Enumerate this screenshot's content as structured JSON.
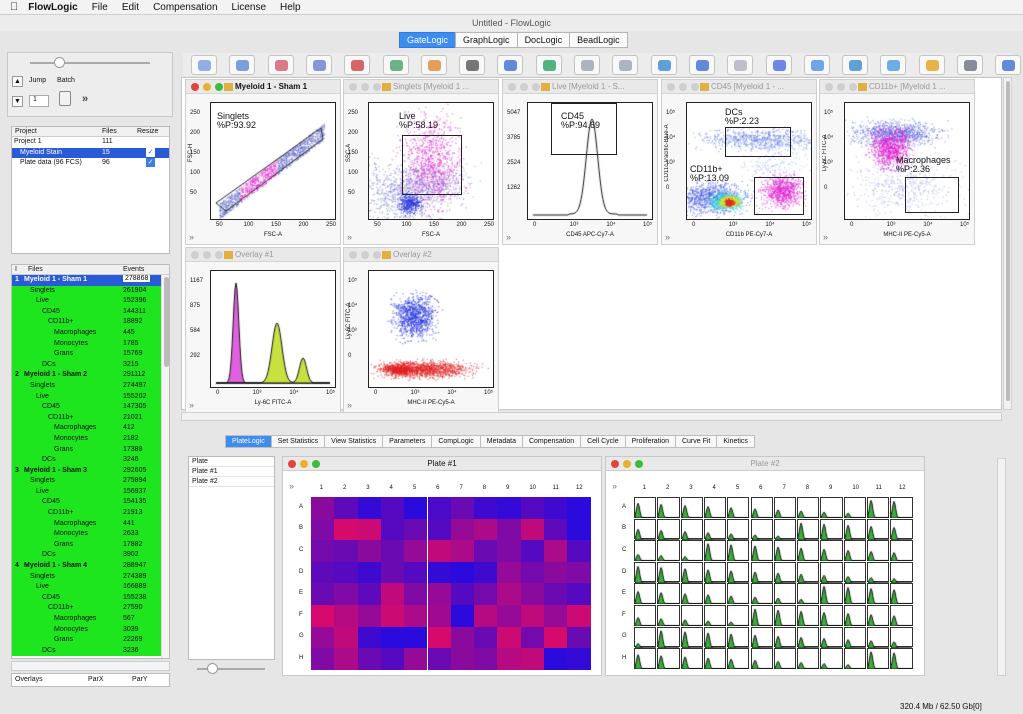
{
  "menubar": {
    "apple": "",
    "app": "FlowLogic",
    "items": [
      "File",
      "Edit",
      "Compensation",
      "License",
      "Help"
    ]
  },
  "window_title": "Untitled - FlowLogic",
  "app_tabs": [
    "GateLogic",
    "GraphLogic",
    "DocLogic",
    "BeadLogic"
  ],
  "left_controls": {
    "jump": "Jump",
    "batch": "Batch",
    "jump_value": "1"
  },
  "project_table": {
    "headers": [
      "Project",
      "Files",
      "Resize"
    ],
    "rows": [
      {
        "name": "Project 1",
        "files": "111"
      },
      {
        "name": "Myeloid Stain",
        "files": "15",
        "checked": true
      },
      {
        "name": "Plate data (96 FCS)",
        "files": "96",
        "checked": true
      }
    ]
  },
  "files_table": {
    "headers": [
      "I",
      "Files",
      "Events"
    ],
    "rows": [
      [
        "1",
        "Myeloid 1 - Sham 1",
        "278868"
      ],
      [
        "",
        "Singlets",
        "261904"
      ],
      [
        "",
        "Live",
        "152396"
      ],
      [
        "",
        "CD45",
        "144311"
      ],
      [
        "",
        "CD11b+",
        "18892"
      ],
      [
        "",
        "Macrophages",
        "445"
      ],
      [
        "",
        "Monocytes",
        "1785"
      ],
      [
        "",
        "Grans",
        "15769"
      ],
      [
        "",
        "DCs",
        "3215"
      ],
      [
        "2",
        "Myeloid 1 - Sham 2",
        "291112"
      ],
      [
        "",
        "Singlets",
        "274497"
      ],
      [
        "",
        "Live",
        "155202"
      ],
      [
        "",
        "CD45",
        "147305"
      ],
      [
        "",
        "CD11b+",
        "21021"
      ],
      [
        "",
        "Macrophages",
        "412"
      ],
      [
        "",
        "Monocytes",
        "2182"
      ],
      [
        "",
        "Grans",
        "17388"
      ],
      [
        "",
        "DCs",
        "3246"
      ],
      [
        "3",
        "Myeloid 1 - Sham 3",
        "292605"
      ],
      [
        "",
        "Singlets",
        "275894"
      ],
      [
        "",
        "Live",
        "156937"
      ],
      [
        "",
        "CD45",
        "154135"
      ],
      [
        "",
        "CD11b+",
        "21913"
      ],
      [
        "",
        "Macrophages",
        "441"
      ],
      [
        "",
        "Monocytes",
        "2633"
      ],
      [
        "",
        "Grans",
        "17882"
      ],
      [
        "",
        "DCs",
        "3902"
      ],
      [
        "4",
        "Myeloid 1 - Sham 4",
        "288947"
      ],
      [
        "",
        "Singlets",
        "274389"
      ],
      [
        "",
        "Live",
        "166889"
      ],
      [
        "",
        "CD45",
        "155238"
      ],
      [
        "",
        "CD11b+",
        "27590"
      ],
      [
        "",
        "Macrophages",
        "567"
      ],
      [
        "",
        "Monocytes",
        "3039"
      ],
      [
        "",
        "Grans",
        "22269"
      ],
      [
        "",
        "DCs",
        "3236"
      ]
    ],
    "indent": [
      0,
      1,
      2,
      3,
      4,
      5,
      5,
      5,
      3,
      0,
      1,
      2,
      3,
      4,
      5,
      5,
      5,
      3,
      0,
      1,
      2,
      3,
      4,
      5,
      5,
      5,
      3,
      0,
      1,
      2,
      3,
      4,
      5,
      5,
      5,
      3
    ]
  },
  "overlays_table": {
    "headers": [
      "Overlays",
      "ParX",
      "ParY"
    ]
  },
  "plots": [
    {
      "title": "Myeloid 1 - Sham 1",
      "active": true,
      "gate": "Singlets",
      "pct": "%P:93.92",
      "x": "FSC-A",
      "y": "FSC-H",
      "xt": [
        "50",
        "100",
        "150",
        "200",
        "250"
      ],
      "yt": [
        "250",
        "200",
        "150",
        "100",
        "50"
      ]
    },
    {
      "title": "Singlets [Myeloid 1 ...",
      "gate": "Live",
      "pct": "%P:58.19",
      "x": "FSC-A",
      "y": "SSC-A",
      "xt": [
        "50",
        "100",
        "150",
        "200",
        "250"
      ],
      "yt": [
        "250",
        "200",
        "150",
        "100",
        "50"
      ]
    },
    {
      "title": "Live [Myeloid 1 - S...",
      "gate": "CD45",
      "pct": "%P:94.69",
      "x": "CD45 APC-Cy7-A",
      "y": "",
      "xt": [
        "0",
        "10³",
        "10⁴",
        "10⁵"
      ],
      "yt": [
        "5047",
        "3785",
        "2524",
        "1262"
      ]
    },
    {
      "title": "CD45 [Myeloid 1 - ...",
      "gate": "DCs",
      "pct": "%P:2.23",
      "gate2": "CD11b+",
      "pct2": "%P:13.09",
      "x": "CD11b PE-Cy7-A",
      "y": "CD11c Pacific-Blue-A",
      "xt": [
        "0",
        "10³",
        "10⁴",
        "10⁵"
      ],
      "yt": [
        "10⁵",
        "10⁴",
        "10³",
        "0"
      ]
    },
    {
      "title": "CD11b+ [Myeloid 1 ...",
      "gate": "Macrophages",
      "pct": "%P:2.36",
      "x": "MHC-II PE-Cy5-A",
      "y": "Ly-6C FITC-A",
      "xt": [
        "0",
        "10³",
        "10⁴",
        "10⁵"
      ],
      "yt": [
        "10⁵",
        "10⁴",
        "10³",
        "0"
      ]
    },
    {
      "title": "Overlay #1",
      "x": "Ly-6C FITC-A",
      "y": "",
      "xt": [
        "0",
        "10³",
        "10⁴",
        "10⁵"
      ],
      "yt": [
        "1167",
        "875",
        "584",
        "292"
      ]
    },
    {
      "title": "Overlay #2",
      "x": "MHC-II PE-Cy5-A",
      "y": "Ly-6C FITC-A",
      "xt": [
        "0",
        "10³",
        "10⁴",
        "10⁵"
      ],
      "yt": [
        "10⁵",
        "10⁴",
        "10³",
        "0"
      ]
    }
  ],
  "bottom_tabs": [
    "PlateLogic",
    "Set Statistics",
    "View Statistics",
    "Parameters",
    "CompLogic",
    "Metadata",
    "Compensation",
    "Cell Cycle",
    "Proliferation",
    "Curve Fit",
    "Kinetics"
  ],
  "plate_list": [
    "Plate",
    "Plate #1",
    "Plate #2"
  ],
  "plate1": {
    "title": "Plate #1",
    "cols": [
      "1",
      "2",
      "3",
      "4",
      "5",
      "6",
      "7",
      "8",
      "9",
      "10",
      "11",
      "12"
    ],
    "rows": [
      "A",
      "B",
      "C",
      "D",
      "E",
      "F",
      "G",
      "H"
    ],
    "values": [
      [
        0.55,
        0.35,
        0.15,
        0.3,
        0.1,
        0.25,
        0.4,
        0.2,
        0.15,
        0.3,
        0.2,
        0.1
      ],
      [
        0.5,
        0.9,
        0.85,
        0.3,
        0.4,
        0.3,
        0.6,
        0.7,
        0.5,
        0.8,
        0.35,
        0.1
      ],
      [
        0.45,
        0.4,
        0.55,
        0.4,
        0.6,
        0.8,
        0.7,
        0.4,
        0.5,
        0.3,
        0.7,
        0.3
      ],
      [
        0.35,
        0.3,
        0.2,
        0.4,
        0.3,
        0.15,
        0.1,
        0.2,
        0.6,
        0.45,
        0.55,
        0.5
      ],
      [
        0.4,
        0.5,
        0.35,
        0.8,
        0.5,
        0.6,
        0.3,
        0.45,
        0.7,
        0.55,
        0.4,
        0.3
      ],
      [
        0.9,
        0.75,
        0.6,
        0.85,
        0.7,
        0.65,
        0.1,
        0.75,
        0.6,
        0.8,
        0.6,
        0.85
      ],
      [
        0.6,
        0.8,
        0.2,
        0.1,
        0.1,
        0.9,
        0.55,
        0.4,
        0.85,
        0.45,
        0.9,
        0.4
      ],
      [
        0.5,
        0.7,
        0.4,
        0.3,
        0.6,
        0.4,
        0.55,
        0.5,
        0.75,
        0.8,
        0.1,
        0.15
      ]
    ]
  },
  "plate2": {
    "title": "Plate #2",
    "cols": [
      "1",
      "2",
      "3",
      "4",
      "5",
      "6",
      "7",
      "8",
      "9",
      "10",
      "11",
      "12"
    ],
    "rows": [
      "A",
      "B",
      "C",
      "D",
      "E",
      "F",
      "G",
      "H"
    ]
  },
  "status": "320.4 Mb / 62.50 Gb[0]"
}
